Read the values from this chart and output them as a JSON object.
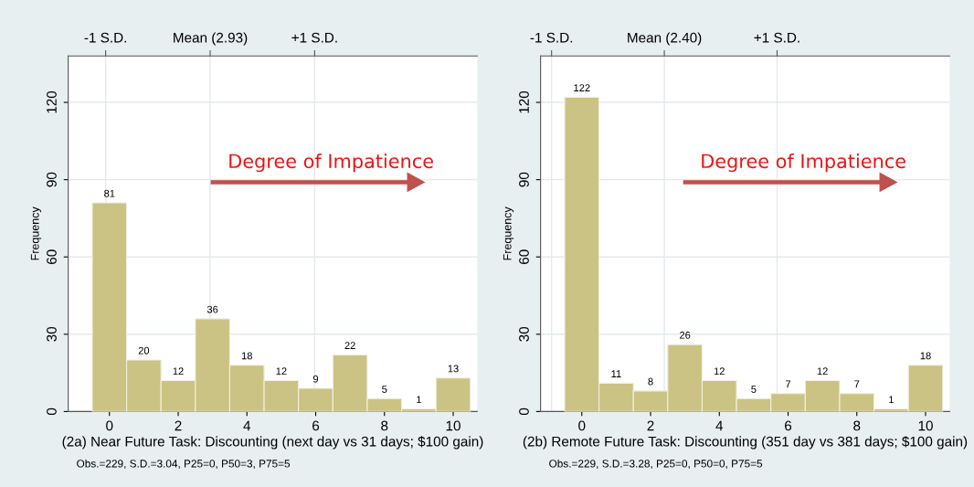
{
  "chart_data": [
    {
      "type": "histogram",
      "xlabel": "(2a) Near Future Task: Discounting (next day vs 31 days; $100 gain)",
      "ylabel": "Frequency",
      "bins": [
        -0.5,
        0.5,
        1.5,
        2.5,
        3.5,
        4.5,
        5.5,
        6.5,
        7.5,
        8.5,
        9.5,
        10.5
      ],
      "values": [
        81,
        20,
        12,
        36,
        18,
        12,
        9,
        22,
        5,
        1,
        13
      ],
      "color": "#cbc383",
      "data_labels": true,
      "xlim": [
        -1.2,
        10.7
      ],
      "xticks": [
        0,
        2,
        4,
        6,
        8,
        10
      ],
      "ylim": [
        0,
        138
      ],
      "yticks": [
        0,
        30,
        60,
        90,
        120
      ],
      "ref_lines": [
        {
          "axis": "x",
          "value": -0.11,
          "label": "-1 S.D."
        },
        {
          "axis": "x",
          "value": 2.93,
          "label": "Mean (2.93)"
        },
        {
          "axis": "x",
          "value": 5.97,
          "label": "+1 S.D."
        }
      ],
      "grid": true,
      "annotations": [
        "Degree of Impatience",
        "Obs.=229, S.D.=3.04, P25=0, P50=3, P75=5"
      ]
    },
    {
      "type": "histogram",
      "xlabel": "(2b) Remote Future Task: Discounting (351 day vs 381 days; $100 gain)",
      "ylabel": "Frequency",
      "bins": [
        -0.5,
        0.5,
        1.5,
        2.5,
        3.5,
        4.5,
        5.5,
        6.5,
        7.5,
        8.5,
        9.5,
        10.5
      ],
      "values": [
        122,
        11,
        8,
        26,
        12,
        5,
        7,
        12,
        7,
        1,
        18
      ],
      "color": "#cbc383",
      "data_labels": true,
      "xlim": [
        -1.2,
        10.7
      ],
      "xticks": [
        0,
        2,
        4,
        6,
        8,
        10
      ],
      "ylim": [
        0,
        138
      ],
      "yticks": [
        0,
        30,
        60,
        90,
        120
      ],
      "ref_lines": [
        {
          "axis": "x",
          "value": -0.88,
          "label": "-1 S.D."
        },
        {
          "axis": "x",
          "value": 2.4,
          "label": "Mean (2.40)"
        },
        {
          "axis": "x",
          "value": 5.68,
          "label": "+1 S.D."
        }
      ],
      "grid": true,
      "annotations": [
        "Degree of Impatience",
        "Obs.=229, S.D.=3.28, P25=0, P50=0, P75=5"
      ]
    }
  ]
}
